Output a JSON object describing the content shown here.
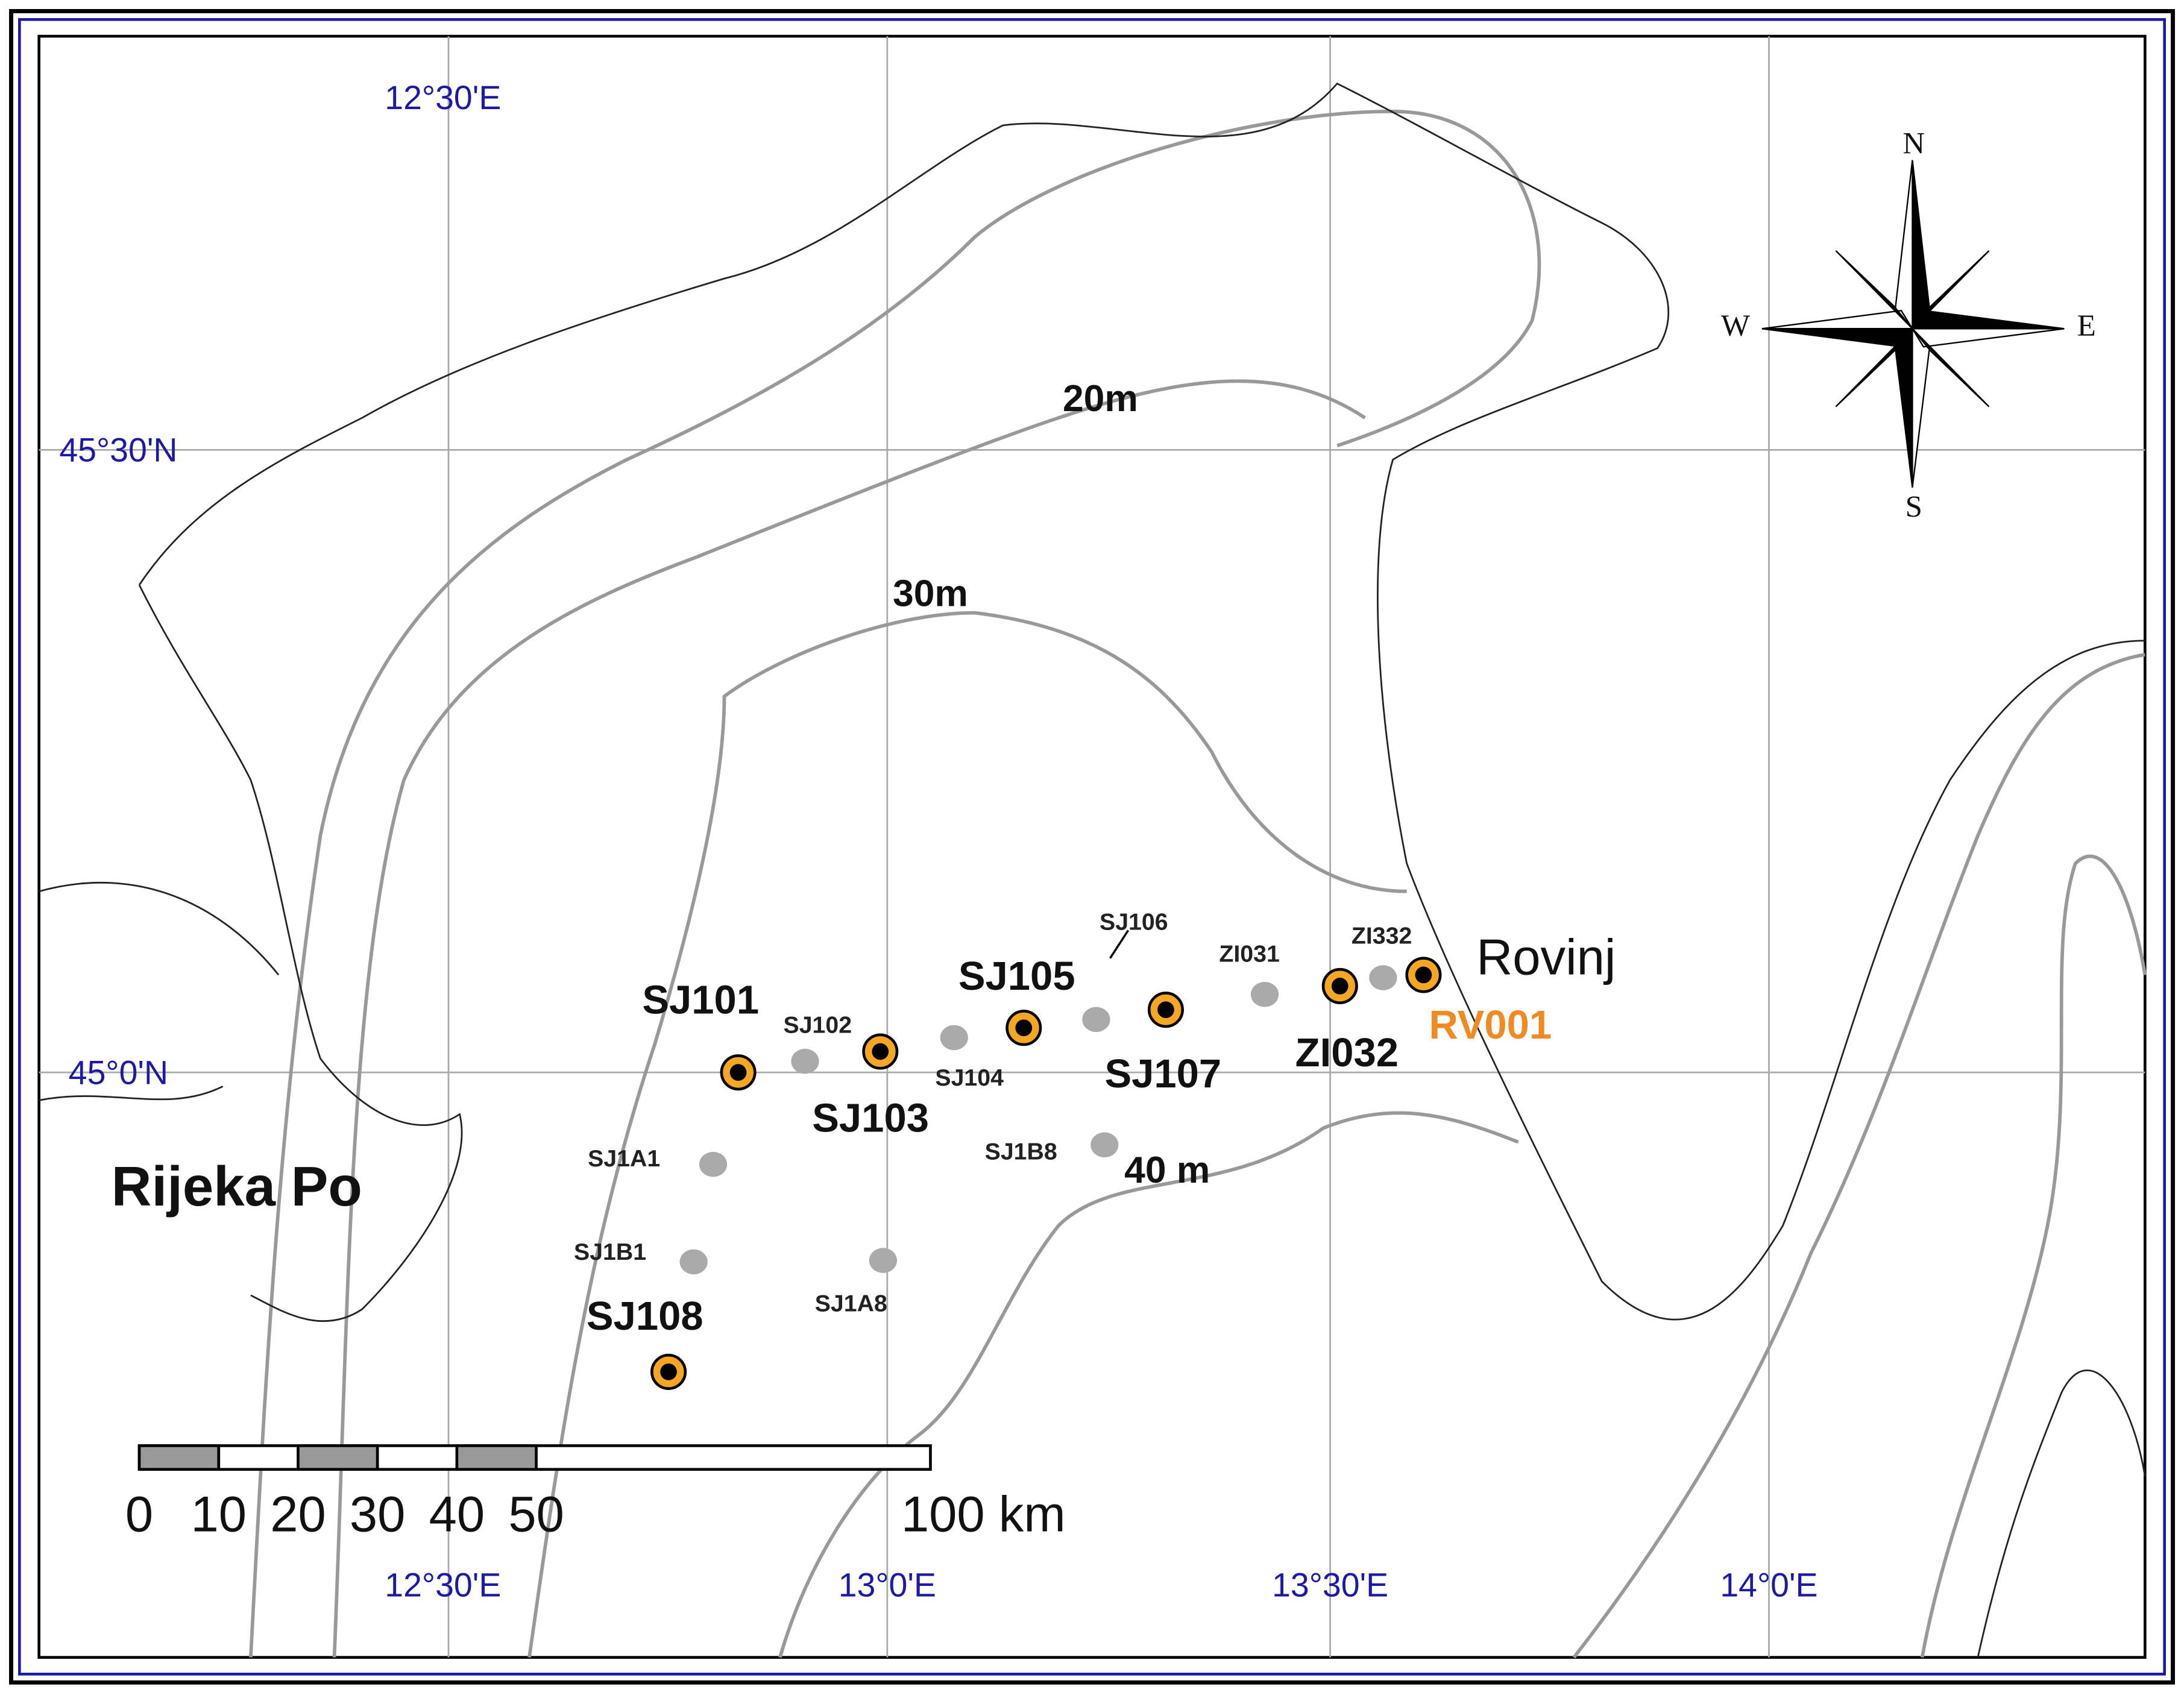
{
  "grid_labels": {
    "top": [
      "12°30'E"
    ],
    "left": [
      "45°30'N",
      "45°0'N"
    ],
    "bottom": [
      "12°30'E",
      "13°0'E",
      "13°30'E",
      "14°0'E"
    ]
  },
  "depth_labels": [
    "20m",
    "30m",
    "40 m"
  ],
  "places": [
    "Rijeka Po",
    "Rovinj"
  ],
  "stations": {
    "major": [
      "SJ101",
      "SJ103",
      "SJ105",
      "SJ107",
      "ZI032",
      "RV001",
      "SJ108"
    ],
    "minor": [
      "SJ102",
      "SJ104",
      "SJ106",
      "ZI031",
      "ZI332",
      "SJ1A1",
      "SJ1B1",
      "SJ1B8",
      "SJ1A8"
    ]
  },
  "compass": {
    "n": "N",
    "s": "S",
    "e": "E",
    "w": "W"
  },
  "scale": {
    "labels": [
      "0",
      "10",
      "20",
      "30",
      "40",
      "50",
      "100 km"
    ]
  }
}
